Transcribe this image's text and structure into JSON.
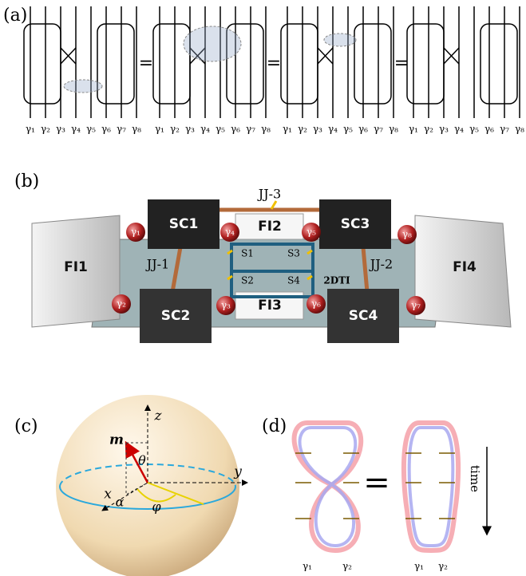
{
  "panel_a": {
    "label": "(a)",
    "diagrams": [
      [
        "γ₁",
        "γ₂",
        "γ₃",
        "γ₄",
        "γ₅",
        "γ₆",
        "γ₇",
        "γ₈"
      ],
      [
        "γ₁",
        "γ₂",
        "γ₃",
        "γ₄",
        "γ₅",
        "γ₆",
        "γ₇",
        "γ₈"
      ],
      [
        "γ₁",
        "γ₂",
        "γ₃",
        "γ₄",
        "γ₅",
        "γ₆",
        "γ₇",
        "γ₈"
      ],
      [
        "γ₁",
        "γ₂",
        "γ₃",
        "γ₄",
        "γ₅",
        "γ₆",
        "γ₇",
        "γ₈"
      ]
    ],
    "equals": [
      "=",
      "=",
      "="
    ]
  },
  "panel_b": {
    "label": "(b)",
    "junctions": [
      "JJ-1",
      "JJ-2",
      "JJ-3"
    ],
    "superconductors": [
      "SC1",
      "SC2",
      "SC3",
      "SC4"
    ],
    "insulators": [
      "FI1",
      "FI2",
      "FI3",
      "FI4"
    ],
    "switches": [
      "S1",
      "S2",
      "S3",
      "S4"
    ],
    "material": "2DTI",
    "majoranas": [
      "γ₁",
      "γ₂",
      "γ₃",
      "γ₄",
      "γ₅",
      "γ₆",
      "γ₇",
      "γ₈"
    ]
  },
  "panel_c": {
    "label": "(c)",
    "axes": {
      "x": "x",
      "y": "y",
      "z": "z"
    },
    "vector": "m",
    "angles": [
      "θ",
      "α",
      "φ"
    ]
  },
  "panel_d": {
    "label": "(d)",
    "equals": "=",
    "time": "time",
    "ends": [
      [
        "γ₁",
        "γ₂"
      ],
      [
        "γ₁",
        "γ₂"
      ]
    ]
  }
}
